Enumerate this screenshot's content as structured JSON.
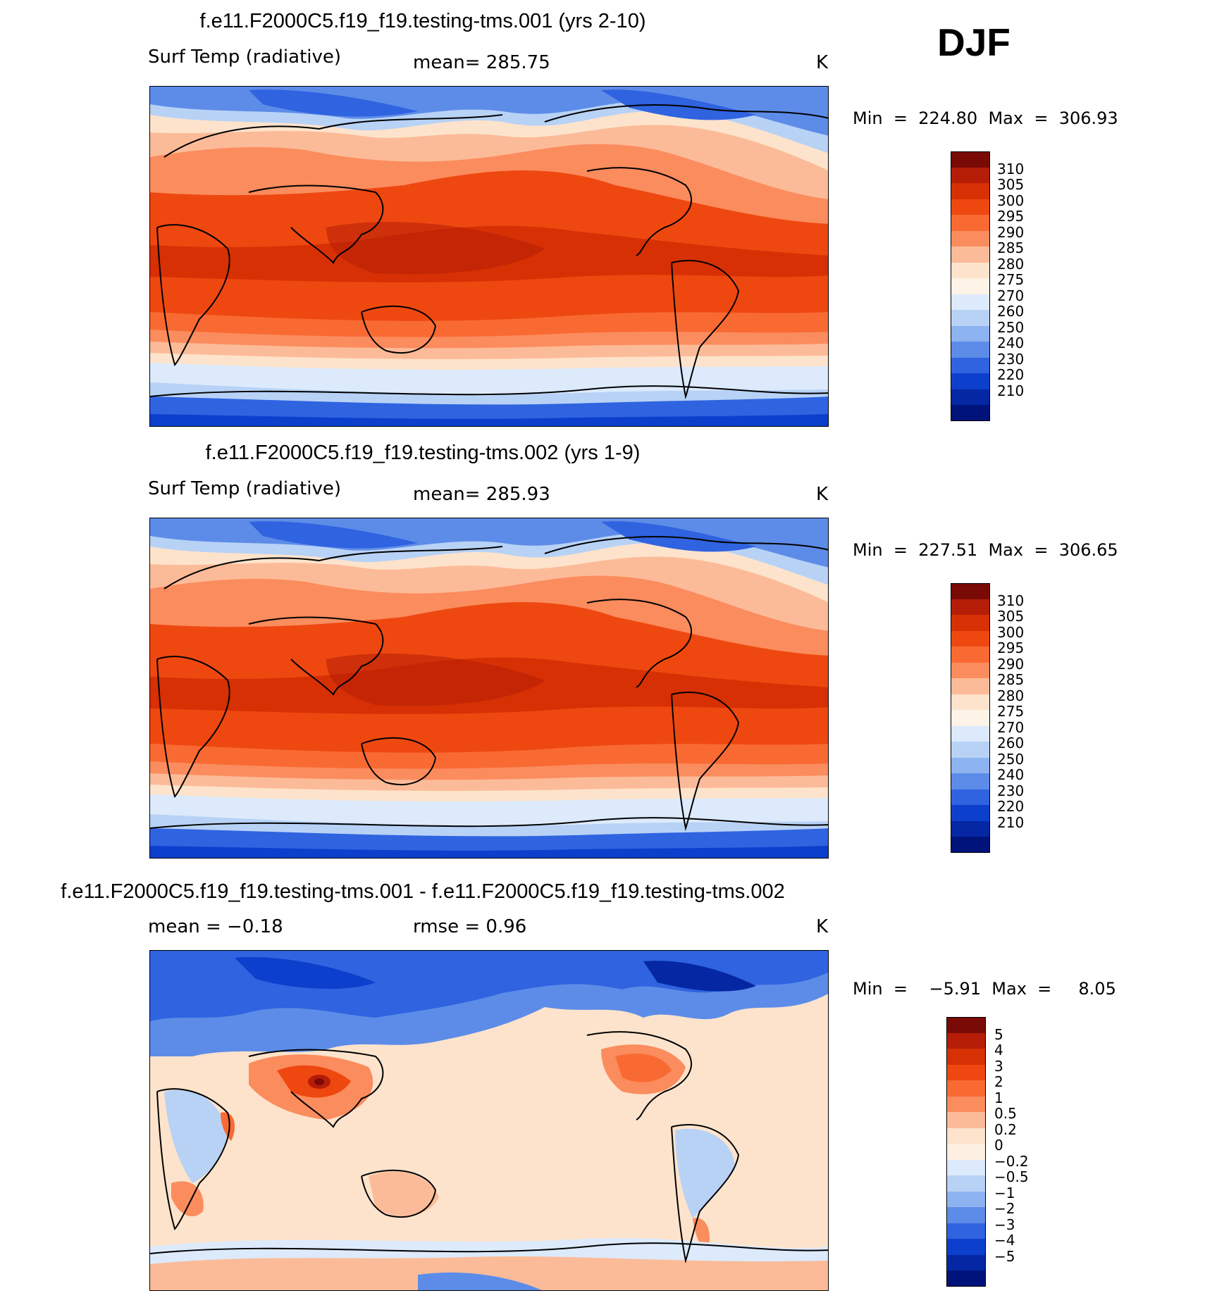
{
  "season": "DJF",
  "panels": [
    {
      "title": "f.e11.F2000C5.f19_f19.testing-tms.001 (yrs 2-10)",
      "variable": "Surf Temp (radiative)",
      "stat1": "mean=  285.75",
      "stat2": "",
      "units": "K",
      "minmax": "Min  =  224.80  Max  =  306.93"
    },
    {
      "title": "f.e11.F2000C5.f19_f19.testing-tms.002 (yrs 1-9)",
      "variable": "Surf Temp (radiative)",
      "stat1": "mean=  285.93",
      "stat2": "",
      "units": "K",
      "minmax": "Min  =  227.51  Max  =  306.65"
    },
    {
      "title": "f.e11.F2000C5.f19_f19.testing-tms.001 - f.e11.F2000C5.f19_f19.testing-tms.002",
      "variable": "",
      "stat1": "mean  =    −0.18",
      "stat2": "rmse  =     0.96",
      "units": "K",
      "minmax": "Min  =    −5.91  Max  =     8.05"
    }
  ],
  "colorbars": {
    "abs": {
      "labels": [
        "310",
        "305",
        "300",
        "295",
        "290",
        "285",
        "280",
        "275",
        "270",
        "260",
        "250",
        "240",
        "230",
        "220",
        "210"
      ],
      "colors": [
        "#7a0a06",
        "#b51d07",
        "#d63004",
        "#ee4810",
        "#f96a33",
        "#fb8c5e",
        "#fcbb98",
        "#fde3cc",
        "#fdf3e6",
        "#dceafb",
        "#b8d2f6",
        "#8db3f1",
        "#5d8ce8",
        "#2f63e0",
        "#0d3fcd",
        "#0527a3",
        "#00137a"
      ]
    },
    "diff": {
      "labels": [
        "5",
        "4",
        "3",
        "2",
        "1",
        "0.5",
        "0.2",
        "0",
        "−0.2",
        "−0.5",
        "−1",
        "−2",
        "−3",
        "−4",
        "−5"
      ],
      "colors": [
        "#7a0a06",
        "#b51d07",
        "#d63004",
        "#ee4810",
        "#f96a33",
        "#fb8c5e",
        "#fcbb98",
        "#fde3cc",
        "#fdf0e2",
        "#dceafb",
        "#b8d2f6",
        "#8db3f1",
        "#5d8ce8",
        "#2f63e0",
        "#0d3fcd",
        "#0527a3",
        "#00137a"
      ]
    }
  }
}
